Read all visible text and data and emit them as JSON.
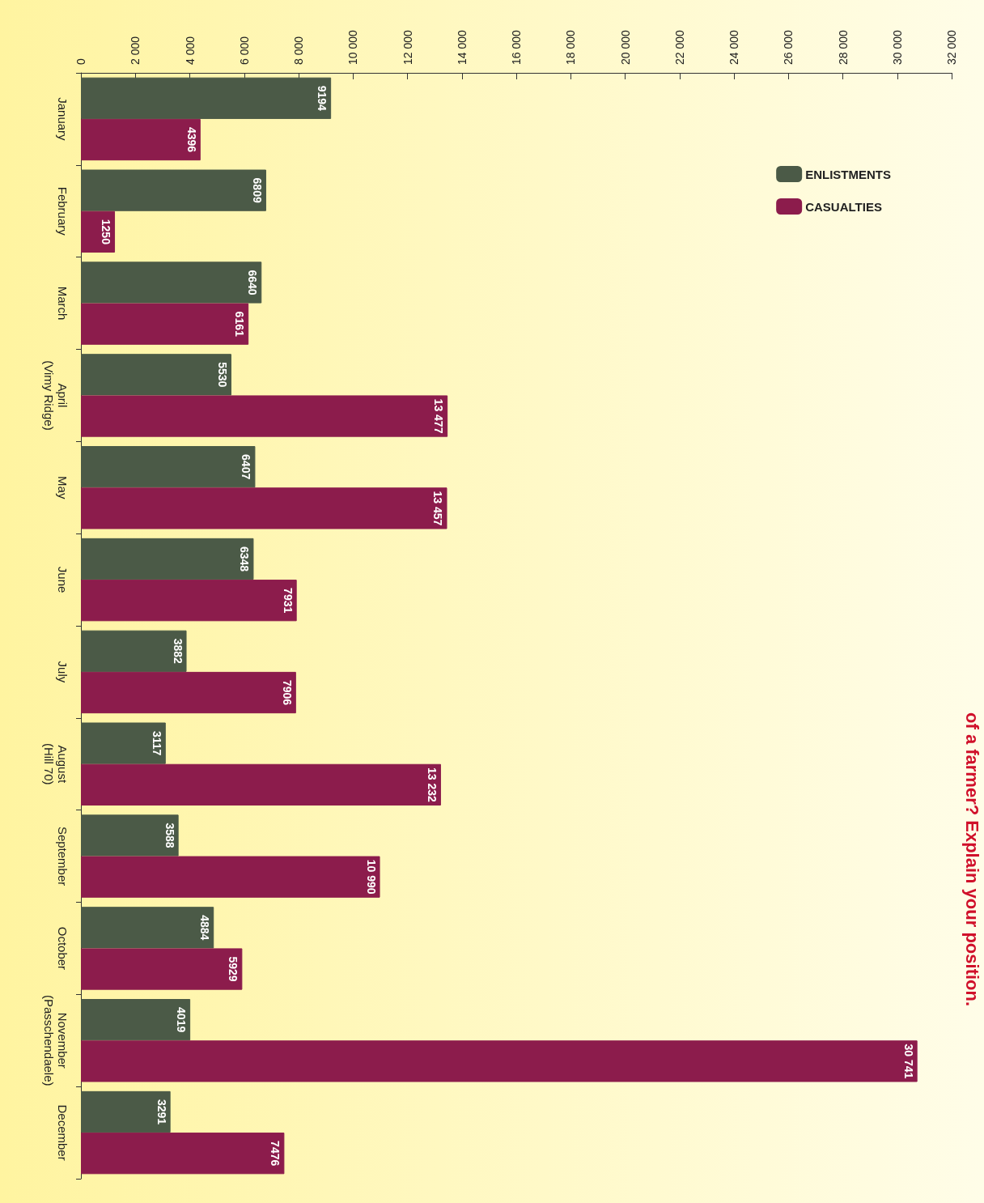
{
  "chart_data": {
    "type": "bar",
    "orientation": "horizontal",
    "categories": [
      "January",
      "February",
      "March",
      "April\n(Vimy Ridge)",
      "May",
      "June",
      "July",
      "August\n(Hill 70)",
      "September",
      "October",
      "November\n(Passchendaele)",
      "December"
    ],
    "series": [
      {
        "name": "ENLISTMENTS",
        "color": "#4b5a47",
        "values": [
          9194,
          6809,
          6640,
          5530,
          6407,
          6348,
          3882,
          3117,
          3588,
          4884,
          4019,
          3291
        ],
        "value_labels": [
          "9194",
          "6809",
          "6640",
          "5530",
          "6407",
          "6348",
          "3882",
          "3117",
          "3588",
          "4884",
          "4019",
          "3291"
        ]
      },
      {
        "name": "CASUALTIES",
        "color": "#8c1c4c",
        "values": [
          4396,
          1250,
          6161,
          13477,
          13457,
          7931,
          7906,
          13232,
          10990,
          5929,
          30741,
          7476
        ],
        "value_labels": [
          "4396",
          "1250",
          "6161",
          "13 477",
          "13 457",
          "7931",
          "7906",
          "13 232",
          "10 990",
          "5929",
          "30 741",
          "7476"
        ]
      }
    ],
    "xlim": [
      0,
      32000
    ],
    "xticks": [
      0,
      {
        "value": 2000,
        "label": "2 000"
      },
      {
        "value": 4000,
        "label": "4 000"
      },
      {
        "value": 6000,
        "label": "6 000"
      },
      {
        "value": 8000,
        "label": "8 000"
      },
      {
        "value": 10000,
        "label": "10 000"
      },
      {
        "value": 12000,
        "label": "12 000"
      },
      {
        "value": 14000,
        "label": "14 000"
      },
      {
        "value": 16000,
        "label": "16 000"
      },
      {
        "value": 18000,
        "label": "18 000"
      },
      {
        "value": 20000,
        "label": "20 000"
      },
      {
        "value": 22000,
        "label": "22 000"
      },
      {
        "value": 24000,
        "label": "24 000"
      },
      {
        "value": 26000,
        "label": "26 000"
      },
      {
        "value": 28000,
        "label": "28 000"
      },
      {
        "value": 30000,
        "label": "30 000"
      },
      {
        "value": 32000,
        "label": "32 000"
      }
    ],
    "legend": "top right",
    "grid": false,
    "annotations": [
      "of a farmer? Explain your position."
    ]
  }
}
